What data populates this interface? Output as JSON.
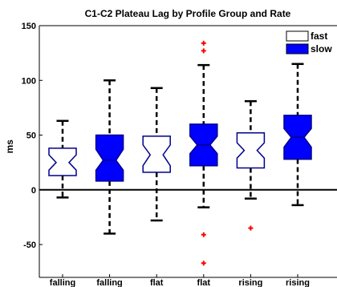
{
  "chart_data": {
    "type": "box",
    "title": "C1-C2 Plateau Lag by Profile Group and Rate",
    "xlabel": "",
    "ylabel": "ms",
    "ylim": [
      -80,
      150
    ],
    "yticks": [
      -50,
      0,
      50,
      100,
      150
    ],
    "grid": false,
    "legend_position": "top-right",
    "zero_line": true,
    "categories": [
      "falling",
      "falling",
      "flat",
      "flat",
      "rising",
      "rising"
    ],
    "legend": [
      {
        "name": "fast",
        "fill": "#ffffff",
        "stroke": "#000000"
      },
      {
        "name": "slow",
        "fill": "#0000ff",
        "stroke": "#000000"
      }
    ],
    "colors": {
      "fast_fill": "#ffffff",
      "slow_fill": "#0000ff",
      "box_edge": "#00008b",
      "outlier": "#ff0000",
      "whisker": "#000000"
    },
    "boxes": [
      {
        "category": "falling",
        "rate": "fast",
        "whisker_low": -7,
        "q1": 13,
        "notch_low": 18,
        "median": 25,
        "notch_high": 32,
        "q3": 38,
        "whisker_high": 63,
        "outliers": []
      },
      {
        "category": "falling",
        "rate": "slow",
        "whisker_low": -40,
        "q1": 8,
        "notch_low": 18,
        "median": 27,
        "notch_high": 37,
        "q3": 50,
        "whisker_high": 100,
        "outliers": []
      },
      {
        "category": "flat",
        "rate": "fast",
        "whisker_low": -28,
        "q1": 16,
        "notch_low": 22,
        "median": 32,
        "notch_high": 41,
        "q3": 49,
        "whisker_high": 93,
        "outliers": []
      },
      {
        "category": "flat",
        "rate": "slow",
        "whisker_low": -16,
        "q1": 22,
        "notch_low": 33,
        "median": 41,
        "notch_high": 49,
        "q3": 60,
        "whisker_high": 114,
        "outliers": [
          127,
          134,
          -41,
          -67
        ]
      },
      {
        "category": "rising",
        "rate": "fast",
        "whisker_low": -8,
        "q1": 20,
        "notch_low": 29,
        "median": 36,
        "notch_high": 43,
        "q3": 52,
        "whisker_high": 81,
        "outliers": [
          -35
        ]
      },
      {
        "category": "rising",
        "rate": "slow",
        "whisker_low": -14,
        "q1": 28,
        "notch_low": 39,
        "median": 48,
        "notch_high": 56,
        "q3": 68,
        "whisker_high": 115,
        "outliers": []
      }
    ]
  }
}
